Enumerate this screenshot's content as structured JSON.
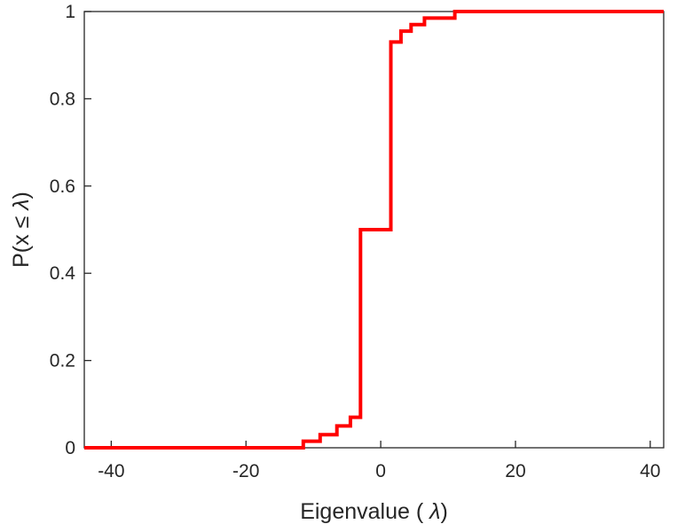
{
  "chart_data": {
    "type": "line",
    "subtype": "ecdf-stairstep",
    "title": "",
    "xlabel": "Eigenvalue ( λ)",
    "xlabel_parts": [
      "Eigenvalue (  ",
      "λ",
      ")"
    ],
    "ylabel": "P(x ≤ λ)",
    "ylabel_parts": [
      "P(x ",
      "≤ λ",
      ")"
    ],
    "xlim": [
      -44,
      42
    ],
    "ylim": [
      0,
      1
    ],
    "xticks": [
      -40,
      -20,
      0,
      20,
      40
    ],
    "yticks": [
      0,
      0.2,
      0.4,
      0.6,
      0.8,
      1
    ],
    "grid": false,
    "legend": null,
    "line_color": "#ff0000",
    "line_width": 4,
    "axis_color": "#262626",
    "background_color": "#ffffff",
    "steps": [
      {
        "x": -11.5,
        "p": 0.015
      },
      {
        "x": -9,
        "p": 0.03
      },
      {
        "x": -6.5,
        "p": 0.05
      },
      {
        "x": -4.5,
        "p": 0.07
      },
      {
        "x": -3,
        "p": 0.5
      },
      {
        "x": 1.5,
        "p": 0.93
      },
      {
        "x": 3,
        "p": 0.955
      },
      {
        "x": 4.5,
        "p": 0.97
      },
      {
        "x": 6.5,
        "p": 0.985
      },
      {
        "x": 11,
        "p": 1.0
      }
    ]
  }
}
